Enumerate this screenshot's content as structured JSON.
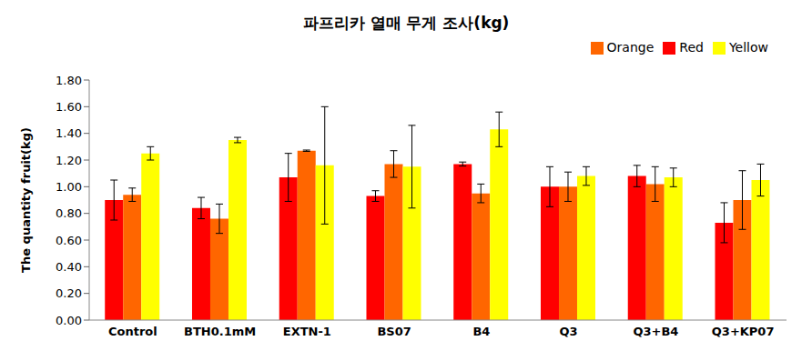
{
  "chart_data": {
    "type": "bar",
    "title": "파프리카 열매 무게 조사(kg)",
    "y_label": "The quantity fruit(kg)",
    "categories": [
      "Control",
      "BTH0.1mM",
      "EXTN-1",
      "BS07",
      "B4",
      "Q3",
      "Q3+B4",
      "Q3+KP07"
    ],
    "series": [
      {
        "name": "Red",
        "color": "#ff0000",
        "values": [
          0.9,
          0.84,
          1.07,
          0.93,
          1.17,
          1.0,
          1.08,
          0.73
        ],
        "errors": [
          0.15,
          0.08,
          0.18,
          0.04,
          0.015,
          0.15,
          0.08,
          0.15
        ]
      },
      {
        "name": "Orange",
        "color": "#ff6600",
        "values": [
          0.94,
          0.76,
          1.27,
          1.17,
          0.95,
          1.0,
          1.02,
          0.9
        ],
        "errors": [
          0.05,
          0.11,
          0.005,
          0.1,
          0.07,
          0.11,
          0.13,
          0.22
        ]
      },
      {
        "name": "Yellow",
        "color": "#ffff00",
        "values": [
          1.25,
          1.35,
          1.16,
          1.15,
          1.43,
          1.08,
          1.07,
          1.05
        ],
        "errors": [
          0.05,
          0.02,
          0.44,
          0.31,
          0.13,
          0.07,
          0.07,
          0.12
        ]
      }
    ],
    "ylim": [
      0,
      1.8
    ],
    "yticks": [
      {
        "value": 0,
        "label": "0.00"
      },
      {
        "value": 0.2,
        "label": "0.20"
      },
      {
        "value": 0.4,
        "label": "0.40"
      },
      {
        "value": 0.6,
        "label": "0.60"
      },
      {
        "value": 0.8,
        "label": "0.80"
      },
      {
        "value": 1,
        "label": "1.00"
      },
      {
        "value": 1.2,
        "label": "1.20"
      },
      {
        "value": 1.4,
        "label": "1.40"
      },
      {
        "value": 1.6,
        "label": "1.60"
      },
      {
        "value": 1.8,
        "label": "1.80"
      }
    ],
    "grid": false,
    "legend": "top-right"
  }
}
